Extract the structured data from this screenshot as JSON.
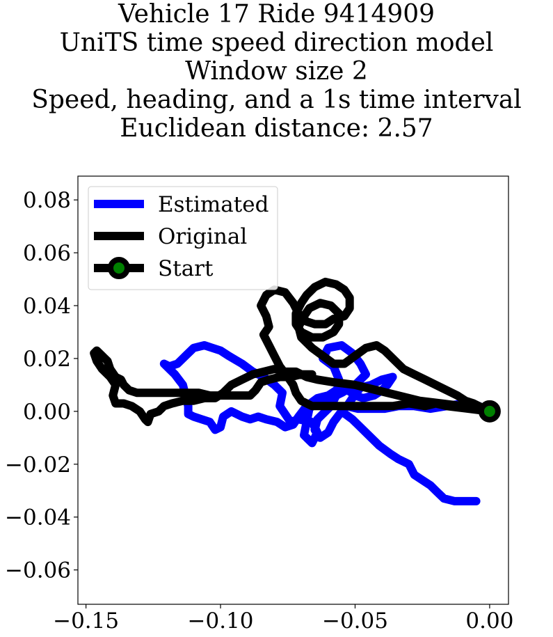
{
  "title_lines": [
    "Vehicle 17 Ride 9414909",
    "UniTS time speed direction model",
    "Window size 2",
    "Speed, heading, and a 1s time interval",
    "Euclidean distance: 2.57"
  ],
  "chart_data": {
    "type": "line",
    "xlim": [
      -0.153,
      0.007
    ],
    "ylim": [
      -0.073,
      0.089
    ],
    "xticks": [
      -0.15,
      -0.1,
      -0.05,
      0.0
    ],
    "xtick_labels": [
      "−0.15",
      "−0.10",
      "−0.05",
      "0.00"
    ],
    "yticks": [
      -0.06,
      -0.04,
      -0.02,
      0.0,
      0.02,
      0.04,
      0.06,
      0.08
    ],
    "ytick_labels": [
      "−0.06",
      "−0.04",
      "−0.02",
      "0.00",
      "0.02",
      "0.04",
      "0.06",
      "0.08"
    ],
    "grid": false,
    "legend_position": "upper-left",
    "series": [
      {
        "name": "Estimated",
        "color": "#0000ff",
        "points": [
          [
            -0.005,
            -0.034
          ],
          [
            -0.013,
            -0.034
          ],
          [
            -0.017,
            -0.033
          ],
          [
            -0.02,
            -0.03
          ],
          [
            -0.022,
            -0.028
          ],
          [
            -0.025,
            -0.026
          ],
          [
            -0.028,
            -0.024
          ],
          [
            -0.03,
            -0.02
          ],
          [
            -0.034,
            -0.018
          ],
          [
            -0.037,
            -0.016
          ],
          [
            -0.041,
            -0.013
          ],
          [
            -0.044,
            -0.01
          ],
          [
            -0.048,
            -0.006
          ],
          [
            -0.051,
            -0.003
          ],
          [
            -0.055,
            0.0
          ],
          [
            -0.058,
            -0.004
          ],
          [
            -0.06,
            -0.008
          ],
          [
            -0.063,
            -0.01
          ],
          [
            -0.065,
            -0.007
          ],
          [
            -0.064,
            -0.003
          ],
          [
            -0.059,
            0.002
          ],
          [
            -0.057,
            0.006
          ],
          [
            -0.056,
            0.012
          ],
          [
            -0.058,
            0.017
          ],
          [
            -0.062,
            0.02
          ],
          [
            -0.06,
            0.024
          ],
          [
            -0.055,
            0.025
          ],
          [
            -0.051,
            0.022
          ],
          [
            -0.048,
            0.018
          ],
          [
            -0.046,
            0.014
          ],
          [
            -0.05,
            0.01
          ],
          [
            -0.055,
            0.007
          ],
          [
            -0.059,
            0.005
          ],
          [
            -0.064,
            0.004
          ],
          [
            -0.067,
            0.001
          ],
          [
            -0.068,
            -0.004
          ],
          [
            -0.069,
            -0.009
          ],
          [
            -0.066,
            -0.012
          ],
          [
            -0.064,
            -0.008
          ],
          [
            -0.066,
            -0.004
          ],
          [
            -0.071,
            -0.003
          ],
          [
            -0.074,
            -0.004
          ],
          [
            -0.076,
            -0.001
          ],
          [
            -0.078,
            0.002
          ],
          [
            -0.077,
            0.007
          ],
          [
            -0.08,
            0.01
          ],
          [
            -0.084,
            0.013
          ],
          [
            -0.088,
            0.015
          ],
          [
            -0.092,
            0.018
          ],
          [
            -0.097,
            0.021
          ],
          [
            -0.1,
            0.023
          ],
          [
            -0.103,
            0.024
          ],
          [
            -0.106,
            0.025
          ],
          [
            -0.11,
            0.024
          ],
          [
            -0.113,
            0.021
          ],
          [
            -0.116,
            0.018
          ],
          [
            -0.119,
            0.017
          ],
          [
            -0.121,
            0.018
          ],
          [
            -0.117,
            0.014
          ],
          [
            -0.114,
            0.01
          ],
          [
            -0.113,
            0.006
          ],
          [
            -0.112,
            0.002
          ],
          [
            -0.112,
            -0.001
          ],
          [
            -0.11,
            -0.002
          ],
          [
            -0.107,
            -0.003
          ],
          [
            -0.104,
            -0.004
          ],
          [
            -0.102,
            -0.007
          ],
          [
            -0.1,
            -0.006
          ],
          [
            -0.099,
            -0.002
          ],
          [
            -0.096,
            0.0
          ],
          [
            -0.092,
            -0.002
          ],
          [
            -0.089,
            -0.003
          ],
          [
            -0.086,
            -0.002
          ],
          [
            -0.083,
            -0.003
          ],
          [
            -0.079,
            -0.004
          ],
          [
            -0.076,
            -0.006
          ],
          [
            -0.073,
            -0.005
          ],
          [
            -0.071,
            -0.002
          ],
          [
            -0.068,
            0.002
          ],
          [
            -0.064,
            0.005
          ],
          [
            -0.06,
            0.006
          ],
          [
            -0.057,
            0.008
          ],
          [
            -0.054,
            0.009
          ],
          [
            -0.05,
            0.006
          ],
          [
            -0.047,
            0.005
          ],
          [
            -0.043,
            0.006
          ],
          [
            -0.04,
            0.008
          ],
          [
            -0.038,
            0.01
          ],
          [
            -0.036,
            0.013
          ],
          [
            -0.04,
            0.012
          ],
          [
            -0.044,
            0.01
          ],
          [
            -0.048,
            0.009
          ],
          [
            -0.051,
            0.005
          ],
          [
            -0.053,
            0.002
          ],
          [
            -0.049,
            0.001
          ],
          [
            -0.044,
            0.001
          ],
          [
            -0.039,
            0.001
          ],
          [
            -0.034,
            0.002
          ],
          [
            -0.028,
            0.002
          ],
          [
            -0.022,
            0.001
          ],
          [
            -0.016,
            0.002
          ],
          [
            -0.01,
            0.003
          ],
          [
            -0.004,
            0.002
          ],
          [
            0.0,
            0.0
          ]
        ]
      },
      {
        "name": "Original",
        "color": "#000000",
        "points": [
          [
            0.0,
            0.0
          ],
          [
            -0.008,
            0.001
          ],
          [
            -0.016,
            0.002
          ],
          [
            -0.02,
            0.003
          ],
          [
            -0.024,
            0.002
          ],
          [
            -0.03,
            0.003
          ],
          [
            -0.036,
            0.002
          ],
          [
            -0.042,
            0.002
          ],
          [
            -0.05,
            0.002
          ],
          [
            -0.056,
            0.002
          ],
          [
            -0.061,
            0.002
          ],
          [
            -0.066,
            0.002
          ],
          [
            -0.07,
            0.004
          ],
          [
            -0.072,
            0.007
          ],
          [
            -0.073,
            0.01
          ],
          [
            -0.075,
            0.013
          ],
          [
            -0.078,
            0.017
          ],
          [
            -0.08,
            0.021
          ],
          [
            -0.082,
            0.025
          ],
          [
            -0.084,
            0.029
          ],
          [
            -0.082,
            0.032
          ],
          [
            -0.083,
            0.036
          ],
          [
            -0.085,
            0.04
          ],
          [
            -0.083,
            0.044
          ],
          [
            -0.08,
            0.046
          ],
          [
            -0.076,
            0.045
          ],
          [
            -0.073,
            0.041
          ],
          [
            -0.071,
            0.037
          ],
          [
            -0.068,
            0.034
          ],
          [
            -0.065,
            0.033
          ],
          [
            -0.061,
            0.033
          ],
          [
            -0.058,
            0.035
          ],
          [
            -0.054,
            0.036
          ],
          [
            -0.052,
            0.039
          ],
          [
            -0.052,
            0.043
          ],
          [
            -0.054,
            0.046
          ],
          [
            -0.057,
            0.048
          ],
          [
            -0.061,
            0.049
          ],
          [
            -0.065,
            0.047
          ],
          [
            -0.068,
            0.044
          ],
          [
            -0.07,
            0.041
          ],
          [
            -0.072,
            0.037
          ],
          [
            -0.072,
            0.033
          ],
          [
            -0.07,
            0.03
          ],
          [
            -0.066,
            0.028
          ],
          [
            -0.062,
            0.028
          ],
          [
            -0.058,
            0.03
          ],
          [
            -0.056,
            0.033
          ],
          [
            -0.056,
            0.037
          ],
          [
            -0.059,
            0.04
          ],
          [
            -0.063,
            0.041
          ],
          [
            -0.067,
            0.039
          ],
          [
            -0.069,
            0.036
          ],
          [
            -0.071,
            0.032
          ],
          [
            -0.07,
            0.028
          ],
          [
            -0.066,
            0.024
          ],
          [
            -0.062,
            0.021
          ],
          [
            -0.058,
            0.018
          ],
          [
            -0.054,
            0.018
          ],
          [
            -0.05,
            0.021
          ],
          [
            -0.046,
            0.024
          ],
          [
            -0.042,
            0.025
          ],
          [
            -0.039,
            0.023
          ],
          [
            -0.036,
            0.02
          ],
          [
            -0.032,
            0.016
          ],
          [
            -0.028,
            0.014
          ],
          [
            -0.024,
            0.012
          ],
          [
            -0.02,
            0.01
          ],
          [
            -0.016,
            0.008
          ],
          [
            -0.012,
            0.006
          ],
          [
            -0.009,
            0.004
          ],
          [
            -0.006,
            0.003
          ],
          [
            -0.002,
            0.001
          ],
          [
            -0.01,
            0.002
          ],
          [
            -0.018,
            0.003
          ],
          [
            -0.026,
            0.004
          ],
          [
            -0.034,
            0.006
          ],
          [
            -0.042,
            0.008
          ],
          [
            -0.05,
            0.01
          ],
          [
            -0.058,
            0.011
          ],
          [
            -0.064,
            0.012
          ],
          [
            -0.068,
            0.013
          ],
          [
            -0.072,
            0.015
          ],
          [
            -0.076,
            0.015
          ],
          [
            -0.08,
            0.016
          ],
          [
            -0.084,
            0.015
          ],
          [
            -0.088,
            0.014
          ],
          [
            -0.092,
            0.012
          ],
          [
            -0.096,
            0.01
          ],
          [
            -0.099,
            0.007
          ],
          [
            -0.102,
            0.005
          ],
          [
            -0.106,
            0.005
          ],
          [
            -0.11,
            0.004
          ],
          [
            -0.114,
            0.004
          ],
          [
            -0.118,
            0.003
          ],
          [
            -0.121,
            0.002
          ],
          [
            -0.123,
            0.0
          ],
          [
            -0.126,
            -0.001
          ],
          [
            -0.127,
            -0.004
          ],
          [
            -0.128,
            -0.003
          ],
          [
            -0.13,
            0.0
          ],
          [
            -0.133,
            0.002
          ],
          [
            -0.136,
            0.003
          ],
          [
            -0.139,
            0.003
          ],
          [
            -0.14,
            0.006
          ],
          [
            -0.139,
            0.01
          ],
          [
            -0.141,
            0.013
          ],
          [
            -0.144,
            0.016
          ],
          [
            -0.146,
            0.019
          ],
          [
            -0.147,
            0.022
          ],
          [
            -0.146,
            0.023
          ],
          [
            -0.144,
            0.021
          ],
          [
            -0.142,
            0.019
          ],
          [
            -0.141,
            0.016
          ],
          [
            -0.139,
            0.013
          ],
          [
            -0.137,
            0.012
          ],
          [
            -0.136,
            0.01
          ],
          [
            -0.134,
            0.008
          ],
          [
            -0.131,
            0.007
          ],
          [
            -0.128,
            0.007
          ],
          [
            -0.124,
            0.007
          ],
          [
            -0.12,
            0.007
          ],
          [
            -0.116,
            0.007
          ],
          [
            -0.112,
            0.007
          ],
          [
            -0.108,
            0.007
          ],
          [
            -0.104,
            0.006
          ],
          [
            -0.1,
            0.006
          ],
          [
            -0.096,
            0.006
          ],
          [
            -0.092,
            0.006
          ],
          [
            -0.089,
            0.006
          ],
          [
            -0.087,
            0.008
          ],
          [
            -0.085,
            0.011
          ],
          [
            -0.082,
            0.012
          ],
          [
            -0.078,
            0.013
          ],
          [
            -0.074,
            0.013
          ],
          [
            -0.07,
            0.014
          ],
          [
            -0.066,
            0.014
          ]
        ]
      }
    ],
    "start_point": [
      0.0,
      0.0
    ],
    "legend": [
      {
        "label": "Estimated",
        "color": "#0000ff",
        "marker": false
      },
      {
        "label": "Original",
        "color": "#000000",
        "marker": false
      },
      {
        "label": "Start",
        "color": "#000000",
        "marker": true,
        "marker_color": "#008000"
      }
    ]
  }
}
